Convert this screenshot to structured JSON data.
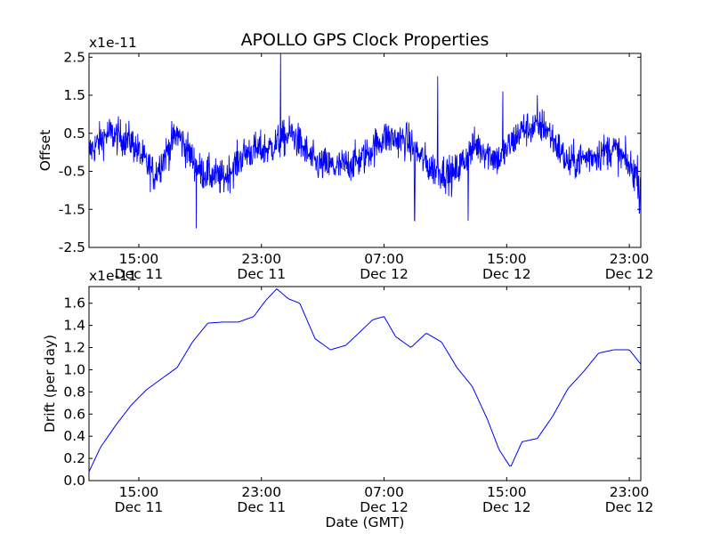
{
  "chart_data": {
    "title": "APOLLO GPS Clock Properties",
    "xlabel": "Date (GMT)",
    "x_ticks": [
      {
        "value": "2011-12-11T15:00",
        "label_time": "15:00",
        "label_date": "Dec 11"
      },
      {
        "value": "2011-12-11T23:00",
        "label_time": "23:00",
        "label_date": "Dec 11"
      },
      {
        "value": "2011-12-12T07:00",
        "label_time": "07:00",
        "label_date": "Dec 12"
      },
      {
        "value": "2011-12-12T15:00",
        "label_time": "15:00",
        "label_date": "Dec 12"
      },
      {
        "value": "2011-12-12T23:00",
        "label_time": "23:00",
        "label_date": "Dec 12"
      }
    ],
    "xlim": [
      "2011-12-11T11:45",
      "2011-12-12T23:45"
    ],
    "panels": [
      {
        "type": "line",
        "ylabel": "Offset",
        "y_multiplier": "x1e-11",
        "ylim": [
          -2.5,
          2.6
        ],
        "y_ticks": [
          -2.5,
          -1.5,
          -0.5,
          0.5,
          1.5,
          2.5
        ],
        "series": [
          {
            "color": "#0000ff",
            "x": [
              "2011-12-11T11:45",
              "2011-12-11T13:00",
              "2011-12-11T14:30",
              "2011-12-11T16:00",
              "2011-12-11T17:30",
              "2011-12-11T19:00",
              "2011-12-11T20:30",
              "2011-12-11T22:00",
              "2011-12-11T23:30",
              "2011-12-12T01:00",
              "2011-12-12T02:30",
              "2011-12-12T04:00",
              "2011-12-12T05:30",
              "2011-12-12T07:00",
              "2011-12-12T08:30",
              "2011-12-12T10:00",
              "2011-12-12T11:30",
              "2011-12-12T13:00",
              "2011-12-12T14:30",
              "2011-12-12T16:00",
              "2011-12-12T17:30",
              "2011-12-12T19:00",
              "2011-12-12T20:30",
              "2011-12-12T22:00",
              "2011-12-12T23:45"
            ],
            "values": [
              0.0,
              0.5,
              0.3,
              -0.6,
              0.5,
              -0.5,
              -0.7,
              0.0,
              0.1,
              0.5,
              -0.3,
              -0.4,
              -0.2,
              0.4,
              0.3,
              -0.4,
              -0.6,
              0.2,
              -0.2,
              0.6,
              0.7,
              -0.3,
              -0.1,
              0.1,
              -0.7
            ],
            "peaks": [
              {
                "x": "2011-12-11T18:45",
                "value": -2.0
              },
              {
                "x": "2011-12-12T00:15",
                "value": 2.6
              },
              {
                "x": "2011-12-12T09:00",
                "value": -1.8
              },
              {
                "x": "2011-12-12T10:30",
                "value": 2.0
              },
              {
                "x": "2011-12-12T12:30",
                "value": -1.8
              },
              {
                "x": "2011-12-12T14:45",
                "value": 1.6
              },
              {
                "x": "2011-12-12T17:00",
                "value": 1.5
              },
              {
                "x": "2011-12-12T23:40",
                "value": -1.6
              }
            ]
          }
        ]
      },
      {
        "type": "line",
        "ylabel": "Drift (per day)",
        "y_multiplier": "x1e-11",
        "ylim": [
          0.0,
          1.75
        ],
        "y_ticks": [
          "0.0",
          "0.2",
          "0.4",
          "0.6",
          "0.8",
          "1.0",
          "1.2",
          "1.4",
          "1.6"
        ],
        "series": [
          {
            "color": "#0000ff",
            "x": [
              "2011-12-11T11:45",
              "2011-12-11T12:30",
              "2011-12-11T13:30",
              "2011-12-11T14:30",
              "2011-12-11T15:30",
              "2011-12-11T16:30",
              "2011-12-11T17:30",
              "2011-12-11T18:30",
              "2011-12-11T19:30",
              "2011-12-11T20:30",
              "2011-12-11T21:30",
              "2011-12-11T22:30",
              "2011-12-11T23:15",
              "2011-12-12T00:00",
              "2011-12-12T00:45",
              "2011-12-12T01:30",
              "2011-12-12T02:30",
              "2011-12-12T03:30",
              "2011-12-12T04:30",
              "2011-12-12T05:30",
              "2011-12-12T06:15",
              "2011-12-12T07:00",
              "2011-12-12T07:45",
              "2011-12-12T08:45",
              "2011-12-12T09:45",
              "2011-12-12T10:45",
              "2011-12-12T11:45",
              "2011-12-12T12:45",
              "2011-12-12T13:45",
              "2011-12-12T14:30",
              "2011-12-12T15:15",
              "2011-12-12T16:00",
              "2011-12-12T17:00",
              "2011-12-12T18:00",
              "2011-12-12T19:00",
              "2011-12-12T20:00",
              "2011-12-12T21:00",
              "2011-12-12T22:00",
              "2011-12-12T23:00",
              "2011-12-12T23:45"
            ],
            "values": [
              0.08,
              0.3,
              0.5,
              0.68,
              0.82,
              0.92,
              1.02,
              1.25,
              1.42,
              1.43,
              1.43,
              1.48,
              1.62,
              1.73,
              1.64,
              1.6,
              1.28,
              1.18,
              1.22,
              1.35,
              1.45,
              1.48,
              1.3,
              1.2,
              1.33,
              1.25,
              1.02,
              0.85,
              0.55,
              0.28,
              0.12,
              0.35,
              0.38,
              0.58,
              0.83,
              0.98,
              1.15,
              1.18,
              1.18,
              1.05
            ]
          }
        ]
      }
    ]
  }
}
